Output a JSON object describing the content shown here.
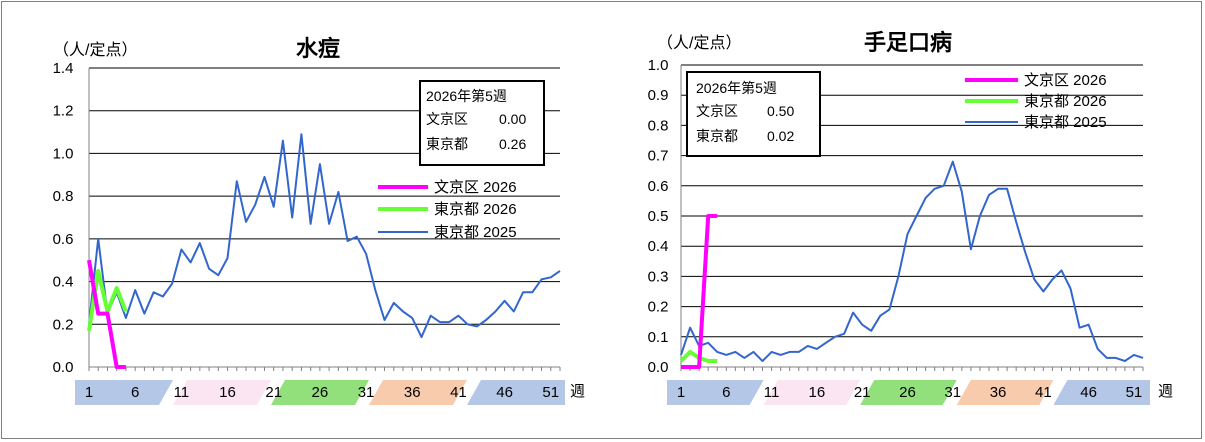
{
  "chart_data": [
    {
      "type": "line",
      "title": "水痘",
      "unit_label": "（人/定点）",
      "xlabel": "週",
      "ylim": [
        0,
        1.4
      ],
      "y_ticks": [
        "0.0",
        "0.2",
        "0.4",
        "0.6",
        "0.8",
        "1.0",
        "1.2",
        "1.4"
      ],
      "x_ticks": [
        1,
        6,
        11,
        16,
        21,
        26,
        31,
        36,
        41,
        46,
        51
      ],
      "x_range": [
        1,
        52
      ],
      "grid": true,
      "legend_position": "right",
      "info_box": {
        "line1": "2026年第5週",
        "line2_name": "文京区",
        "line2_value": "0.00",
        "line3_name": "東京都",
        "line3_value": "0.26"
      },
      "series": [
        {
          "name": "文京区 2026",
          "color": "#ff00ff",
          "width": 4,
          "x": [
            1,
            2,
            3,
            4,
            5
          ],
          "values": [
            0.5,
            0.25,
            0.25,
            0.0,
            0.0
          ]
        },
        {
          "name": "東京都 2026",
          "color": "#66ff33",
          "width": 4,
          "x": [
            1,
            2,
            3,
            4,
            5
          ],
          "values": [
            0.17,
            0.45,
            0.26,
            0.37,
            0.26
          ]
        },
        {
          "name": "東京都 2025",
          "color": "#3366cc",
          "width": 2,
          "x": [
            1,
            2,
            3,
            4,
            5,
            6,
            7,
            8,
            9,
            10,
            11,
            12,
            13,
            14,
            15,
            16,
            17,
            18,
            19,
            20,
            21,
            22,
            23,
            24,
            25,
            26,
            27,
            28,
            29,
            30,
            31,
            32,
            33,
            34,
            35,
            36,
            37,
            38,
            39,
            40,
            41,
            42,
            43,
            44,
            45,
            46,
            47,
            48,
            49,
            50,
            51,
            52
          ],
          "values": [
            0.2,
            0.6,
            0.25,
            0.35,
            0.23,
            0.36,
            0.25,
            0.35,
            0.33,
            0.39,
            0.55,
            0.49,
            0.58,
            0.46,
            0.43,
            0.51,
            0.87,
            0.68,
            0.76,
            0.89,
            0.75,
            1.06,
            0.7,
            1.09,
            0.67,
            0.95,
            0.67,
            0.82,
            0.59,
            0.61,
            0.53,
            0.36,
            0.22,
            0.3,
            0.26,
            0.23,
            0.14,
            0.24,
            0.21,
            0.21,
            0.24,
            0.2,
            0.19,
            0.22,
            0.26,
            0.31,
            0.26,
            0.35,
            0.35,
            0.41,
            0.42,
            0.45
          ]
        }
      ]
    },
    {
      "type": "line",
      "title": "手足口病",
      "unit_label": "（人/定点）",
      "xlabel": "週",
      "ylim": [
        0,
        1.0
      ],
      "y_ticks": [
        "0.0",
        "0.1",
        "0.2",
        "0.3",
        "0.4",
        "0.5",
        "0.6",
        "0.7",
        "0.8",
        "0.9",
        "1.0"
      ],
      "x_ticks": [
        1,
        6,
        11,
        16,
        21,
        26,
        31,
        36,
        41,
        46,
        51
      ],
      "x_range": [
        1,
        52
      ],
      "grid": true,
      "legend_position": "top-right",
      "info_box": {
        "line1": "2026年第5週",
        "line2_name": "文京区",
        "line2_value": "0.50",
        "line3_name": "東京都",
        "line3_value": "0.02"
      },
      "series": [
        {
          "name": "文京区 2026",
          "color": "#ff00ff",
          "width": 4,
          "x": [
            1,
            2,
            3,
            4,
            5
          ],
          "values": [
            0.0,
            0.0,
            0.0,
            0.5,
            0.5
          ]
        },
        {
          "name": "東京都 2026",
          "color": "#66ff33",
          "width": 4,
          "x": [
            1,
            2,
            3,
            4,
            5
          ],
          "values": [
            0.02,
            0.05,
            0.03,
            0.02,
            0.02
          ]
        },
        {
          "name": "東京都 2025",
          "color": "#3366cc",
          "width": 2,
          "x": [
            1,
            2,
            3,
            4,
            5,
            6,
            7,
            8,
            9,
            10,
            11,
            12,
            13,
            14,
            15,
            16,
            17,
            18,
            19,
            20,
            21,
            22,
            23,
            24,
            25,
            26,
            27,
            28,
            29,
            30,
            31,
            32,
            33,
            34,
            35,
            36,
            37,
            38,
            39,
            40,
            41,
            42,
            43,
            44,
            45,
            46,
            47,
            48,
            49,
            50,
            51,
            52
          ],
          "values": [
            0.04,
            0.13,
            0.07,
            0.08,
            0.05,
            0.04,
            0.05,
            0.03,
            0.05,
            0.02,
            0.05,
            0.04,
            0.05,
            0.05,
            0.07,
            0.06,
            0.08,
            0.1,
            0.11,
            0.18,
            0.14,
            0.12,
            0.17,
            0.19,
            0.3,
            0.44,
            0.5,
            0.56,
            0.59,
            0.6,
            0.68,
            0.58,
            0.39,
            0.5,
            0.57,
            0.59,
            0.59,
            0.48,
            0.38,
            0.29,
            0.25,
            0.29,
            0.32,
            0.26,
            0.13,
            0.14,
            0.06,
            0.03,
            0.03,
            0.02,
            0.04,
            0.03
          ]
        }
      ]
    }
  ],
  "band_colors": [
    "#b4c7e7",
    "#fbe5f2",
    "#92e07c",
    "#f8cbad",
    "#b4c7e7"
  ]
}
